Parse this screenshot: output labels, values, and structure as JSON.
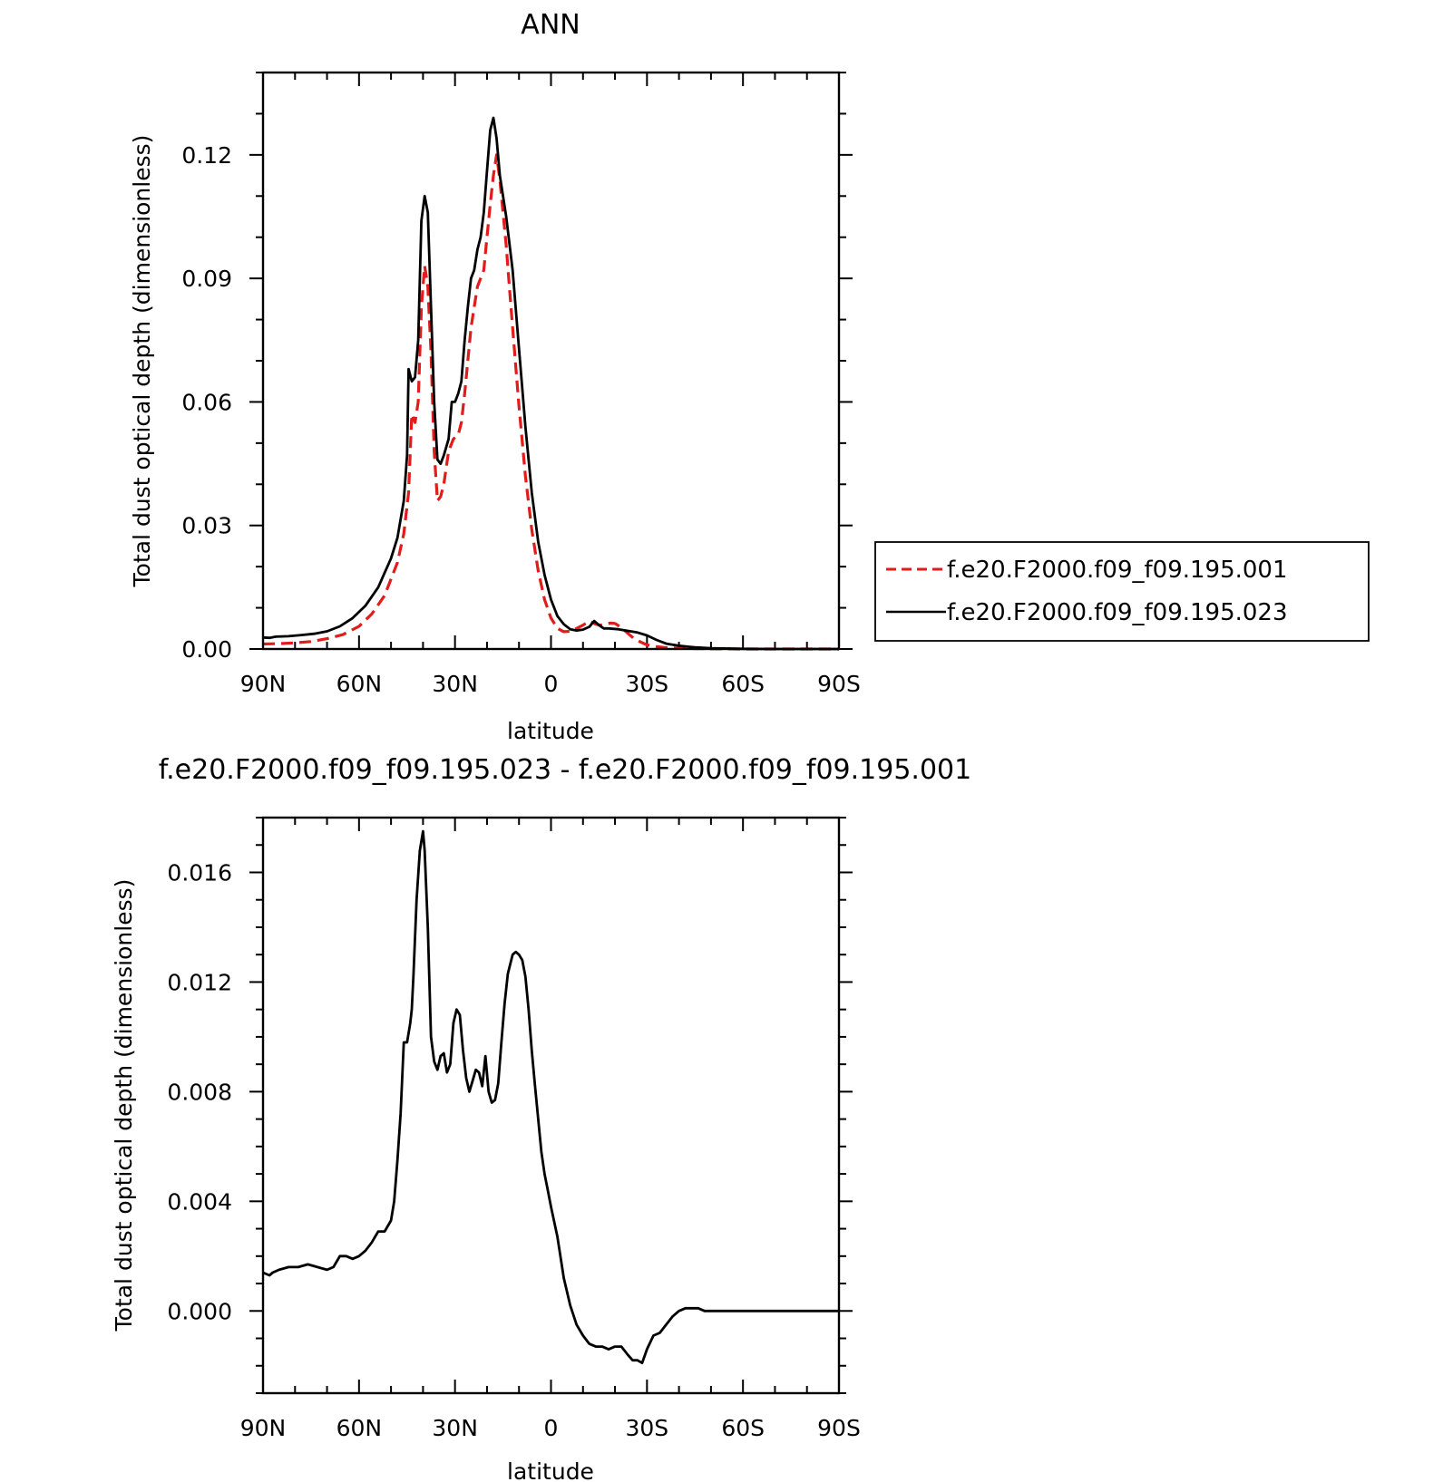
{
  "colors": {
    "control": "#e21b1b",
    "test": "#000000",
    "axis": "#000000",
    "background": "#ffffff"
  },
  "chart_data": [
    {
      "type": "line",
      "title": "ANN",
      "xlabel": "latitude",
      "ylabel": "Total dust optical depth (dimensionless)",
      "xlim": [
        90,
        -90
      ],
      "ylim": [
        0,
        0.14
      ],
      "grid": false,
      "legend_position": "right",
      "x_ticks": [
        {
          "value": 90,
          "label": "90N"
        },
        {
          "value": 60,
          "label": "60N"
        },
        {
          "value": 30,
          "label": "30N"
        },
        {
          "value": 0,
          "label": "0"
        },
        {
          "value": -30,
          "label": "30S"
        },
        {
          "value": -60,
          "label": "60S"
        },
        {
          "value": -90,
          "label": "90S"
        }
      ],
      "y_ticks": [
        {
          "value": 0,
          "label": "0.00"
        },
        {
          "value": 0.03,
          "label": "0.03"
        },
        {
          "value": 0.06,
          "label": "0.06"
        },
        {
          "value": 0.09,
          "label": "0.09"
        },
        {
          "value": 0.12,
          "label": "0.12"
        }
      ],
      "series": [
        {
          "name": "f.e20.F2000.f09_f09.195.001",
          "style": "dashed",
          "color": "#e21b1b",
          "x": [
            90,
            85,
            80,
            75,
            70,
            65,
            60,
            56,
            52,
            48,
            46,
            44.5,
            43.5,
            42.5,
            41.5,
            40.5,
            39.5,
            38.5,
            37.5,
            36.5,
            35.5,
            34.5,
            33.5,
            32,
            30.5,
            29,
            28,
            27,
            26,
            25,
            24,
            23,
            22,
            21,
            20,
            19,
            18,
            17,
            16,
            15,
            14,
            13,
            12,
            10,
            8,
            6,
            4,
            2,
            0,
            -2,
            -4,
            -6,
            -8,
            -10,
            -12,
            -14,
            -15.5,
            -17,
            -18.5,
            -20,
            -22,
            -24,
            -26,
            -28,
            -30,
            -33,
            -36,
            -40,
            -45,
            -50,
            -60,
            -70,
            -80,
            -90
          ],
          "y": [
            0.0012,
            0.0013,
            0.0015,
            0.0018,
            0.0025,
            0.0035,
            0.0055,
            0.0085,
            0.013,
            0.021,
            0.028,
            0.038,
            0.057,
            0.055,
            0.06,
            0.083,
            0.093,
            0.088,
            0.072,
            0.048,
            0.036,
            0.037,
            0.04,
            0.048,
            0.051,
            0.052,
            0.055,
            0.062,
            0.07,
            0.078,
            0.083,
            0.088,
            0.09,
            0.092,
            0.1,
            0.108,
            0.115,
            0.12,
            0.114,
            0.106,
            0.098,
            0.088,
            0.078,
            0.059,
            0.042,
            0.029,
            0.019,
            0.012,
            0.0075,
            0.005,
            0.0042,
            0.0043,
            0.005,
            0.0058,
            0.0068,
            0.006,
            0.0058,
            0.006,
            0.0063,
            0.0062,
            0.0052,
            0.0038,
            0.0025,
            0.0017,
            0.001,
            0.0006,
            0.0003,
            0.0002,
            0.0001,
            5e-05,
            0.0,
            0.0,
            0.0,
            0.0
          ]
        },
        {
          "name": "f.e20.F2000.f09_f09.195.023",
          "style": "solid",
          "color": "#000000",
          "x": [
            90,
            88,
            86,
            82,
            78,
            74,
            70,
            66,
            62,
            58,
            54,
            50,
            48,
            46,
            45,
            44.5,
            43.5,
            42.5,
            41.5,
            40.5,
            39.5,
            38.5,
            37.5,
            36.5,
            35.5,
            34.5,
            33.5,
            32,
            31,
            30,
            29,
            28,
            27,
            26,
            25,
            24,
            23,
            22,
            21,
            20,
            19,
            18,
            17,
            16,
            15,
            14,
            12,
            10,
            8,
            6,
            4,
            2,
            0,
            -2,
            -4,
            -6,
            -8,
            -10,
            -12,
            -13.5,
            -15,
            -16.5,
            -18,
            -21,
            -24,
            -27,
            -30,
            -33,
            -36,
            -40,
            -45,
            -50,
            -60,
            -70,
            -80,
            -90
          ],
          "y": [
            0.0028,
            0.0027,
            0.003,
            0.0031,
            0.0034,
            0.0037,
            0.0043,
            0.0055,
            0.0075,
            0.0105,
            0.015,
            0.022,
            0.027,
            0.036,
            0.047,
            0.068,
            0.065,
            0.066,
            0.075,
            0.104,
            0.11,
            0.106,
            0.083,
            0.06,
            0.046,
            0.045,
            0.047,
            0.051,
            0.06,
            0.06,
            0.062,
            0.065,
            0.075,
            0.083,
            0.09,
            0.092,
            0.097,
            0.1,
            0.106,
            0.116,
            0.126,
            0.129,
            0.124,
            0.115,
            0.11,
            0.105,
            0.092,
            0.073,
            0.054,
            0.038,
            0.026,
            0.018,
            0.012,
            0.008,
            0.006,
            0.0048,
            0.0045,
            0.0047,
            0.0054,
            0.0068,
            0.0058,
            0.005,
            0.005,
            0.0048,
            0.0044,
            0.004,
            0.0033,
            0.0022,
            0.0013,
            0.0008,
            0.0004,
            0.0002,
            5e-05,
            0.0,
            0.0,
            0.0
          ]
        }
      ]
    },
    {
      "type": "line",
      "title": "f.e20.F2000.f09_f09.195.023 - f.e20.F2000.f09_f09.195.001",
      "xlabel": "latitude",
      "ylabel": "Total dust optical depth (dimensionless)",
      "xlim": [
        90,
        -90
      ],
      "ylim": [
        -0.003,
        0.018
      ],
      "grid": false,
      "x_ticks": [
        {
          "value": 90,
          "label": "90N"
        },
        {
          "value": 60,
          "label": "60N"
        },
        {
          "value": 30,
          "label": "30N"
        },
        {
          "value": 0,
          "label": "0"
        },
        {
          "value": -30,
          "label": "30S"
        },
        {
          "value": -60,
          "label": "60S"
        },
        {
          "value": -90,
          "label": "90S"
        }
      ],
      "y_ticks": [
        {
          "value": 0.0,
          "label": "0.000"
        },
        {
          "value": 0.004,
          "label": "0.004"
        },
        {
          "value": 0.008,
          "label": "0.008"
        },
        {
          "value": 0.012,
          "label": "0.012"
        },
        {
          "value": 0.016,
          "label": "0.016"
        }
      ],
      "series": [
        {
          "name": "",
          "style": "solid",
          "color": "#000000",
          "x": [
            90,
            88,
            87,
            85,
            82,
            79,
            76,
            73,
            70,
            68,
            66,
            64,
            62,
            60,
            58,
            56,
            54,
            52,
            50,
            49,
            48,
            47,
            46,
            45,
            44,
            43.5,
            43,
            42,
            41,
            40,
            39.5,
            38.5,
            37.5,
            36.5,
            35.5,
            34.5,
            33.5,
            32.5,
            31.5,
            30.5,
            29.5,
            28.5,
            27.5,
            26.5,
            25.5,
            24.5,
            23.5,
            22.5,
            21.5,
            20.5,
            19.5,
            18.5,
            17.5,
            16.5,
            15.5,
            14.5,
            13.5,
            12,
            11,
            10,
            9,
            8,
            7,
            6,
            5,
            4,
            3,
            2,
            1,
            0,
            -2,
            -4,
            -6,
            -8,
            -10,
            -12,
            -14,
            -16,
            -18,
            -20,
            -22,
            -24,
            -25.5,
            -27,
            -28.5,
            -30,
            -32,
            -34,
            -36,
            -38,
            -40,
            -42,
            -44,
            -46,
            -48,
            -50,
            -55,
            -60,
            -70,
            -80,
            -90
          ],
          "y": [
            0.0014,
            0.0013,
            0.0014,
            0.0015,
            0.0016,
            0.0016,
            0.0017,
            0.0016,
            0.0015,
            0.0016,
            0.002,
            0.002,
            0.0019,
            0.002,
            0.0022,
            0.0025,
            0.0029,
            0.0029,
            0.0033,
            0.004,
            0.0055,
            0.0072,
            0.0098,
            0.0098,
            0.0105,
            0.011,
            0.0122,
            0.015,
            0.0168,
            0.0175,
            0.0168,
            0.014,
            0.01,
            0.0091,
            0.0088,
            0.0093,
            0.0094,
            0.0087,
            0.009,
            0.0105,
            0.011,
            0.0108,
            0.0095,
            0.0085,
            0.008,
            0.0084,
            0.0088,
            0.0087,
            0.0082,
            0.0093,
            0.008,
            0.0076,
            0.0077,
            0.0083,
            0.0098,
            0.0112,
            0.0123,
            0.013,
            0.0131,
            0.013,
            0.0128,
            0.0122,
            0.011,
            0.0095,
            0.0082,
            0.007,
            0.0058,
            0.005,
            0.0044,
            0.0038,
            0.0027,
            0.0012,
            0.0002,
            -0.0005,
            -0.0009,
            -0.0012,
            -0.0013,
            -0.0013,
            -0.0014,
            -0.0013,
            -0.0013,
            -0.0016,
            -0.0018,
            -0.0018,
            -0.0019,
            -0.0014,
            -0.0009,
            -0.0008,
            -0.0005,
            -0.0002,
            0.0,
            0.0001,
            0.0001,
            0.0001,
            0.0,
            0.0,
            0.0,
            0.0,
            0.0,
            0.0,
            0.0
          ]
        }
      ]
    }
  ]
}
